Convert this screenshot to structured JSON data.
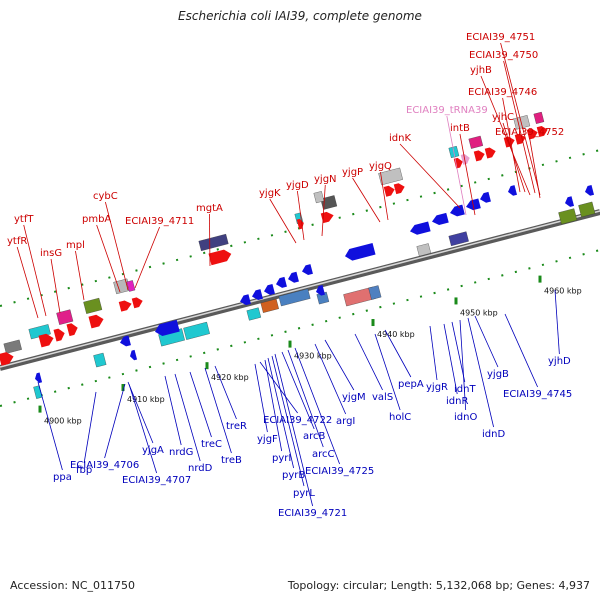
{
  "title": "Escherichia coli IAI39, complete genome",
  "footer": {
    "accession": "Accession: NC_011750",
    "summary": "Topology: circular; Length: 5,132,068 bp; Genes: 4,937"
  },
  "colors": {
    "backbone": "#8c8c8c",
    "plus_label": "#cc0000",
    "minus_label": "#0000bb",
    "trna_label": "#e080c0",
    "tick": "#1a8a1a"
  },
  "ticks": [
    {
      "label": "4900 kbp"
    },
    {
      "label": "4910 kbp"
    },
    {
      "label": "4920 kbp"
    },
    {
      "label": "4930 kbp"
    },
    {
      "label": "4940 kbp"
    },
    {
      "label": "4950 kbp"
    },
    {
      "label": "4960 kbp"
    }
  ],
  "plus_labels": [
    {
      "text": "ytfR"
    },
    {
      "text": "ytfT"
    },
    {
      "text": "insG"
    },
    {
      "text": "mpl"
    },
    {
      "text": "pmbA"
    },
    {
      "text": "cybC"
    },
    {
      "text": "ECIAI39_4711"
    },
    {
      "text": "mgtA"
    },
    {
      "text": "yjgK"
    },
    {
      "text": "yjgD"
    },
    {
      "text": "yjgN"
    },
    {
      "text": "yjgP"
    },
    {
      "text": "yjgQ"
    },
    {
      "text": "idnK"
    },
    {
      "text": "ECIAI39_tRNA39"
    },
    {
      "text": "intB"
    },
    {
      "text": "ECIAI39_4746"
    },
    {
      "text": "yjhB"
    },
    {
      "text": "ECIAI39_4750"
    },
    {
      "text": "ECIAI39_4751"
    },
    {
      "text": "yjhC"
    },
    {
      "text": "ECIAI39_4752"
    }
  ],
  "minus_labels": [
    {
      "text": "ppa"
    },
    {
      "text": "fbp"
    },
    {
      "text": "ECIAI39_4706"
    },
    {
      "text": "ECIAI39_4707"
    },
    {
      "text": "yjgA"
    },
    {
      "text": "nrdG"
    },
    {
      "text": "nrdD"
    },
    {
      "text": "treC"
    },
    {
      "text": "treB"
    },
    {
      "text": "treR"
    },
    {
      "text": "yjgF"
    },
    {
      "text": "ECIAI39_4722"
    },
    {
      "text": "pyrI"
    },
    {
      "text": "pyrB"
    },
    {
      "text": "pyrL"
    },
    {
      "text": "ECIAI39_4721"
    },
    {
      "text": "arcB"
    },
    {
      "text": "arcC"
    },
    {
      "text": "ECIAI39_4725"
    },
    {
      "text": "argI"
    },
    {
      "text": "yjgM"
    },
    {
      "text": "valS"
    },
    {
      "text": "holC"
    },
    {
      "text": "pepA"
    },
    {
      "text": "yjgR"
    },
    {
      "text": "idnR"
    },
    {
      "text": "idnT"
    },
    {
      "text": "idnO"
    },
    {
      "text": "idnD"
    },
    {
      "text": "yjgB"
    },
    {
      "text": "ECIAI39_4745"
    },
    {
      "text": "yjhD"
    }
  ]
}
